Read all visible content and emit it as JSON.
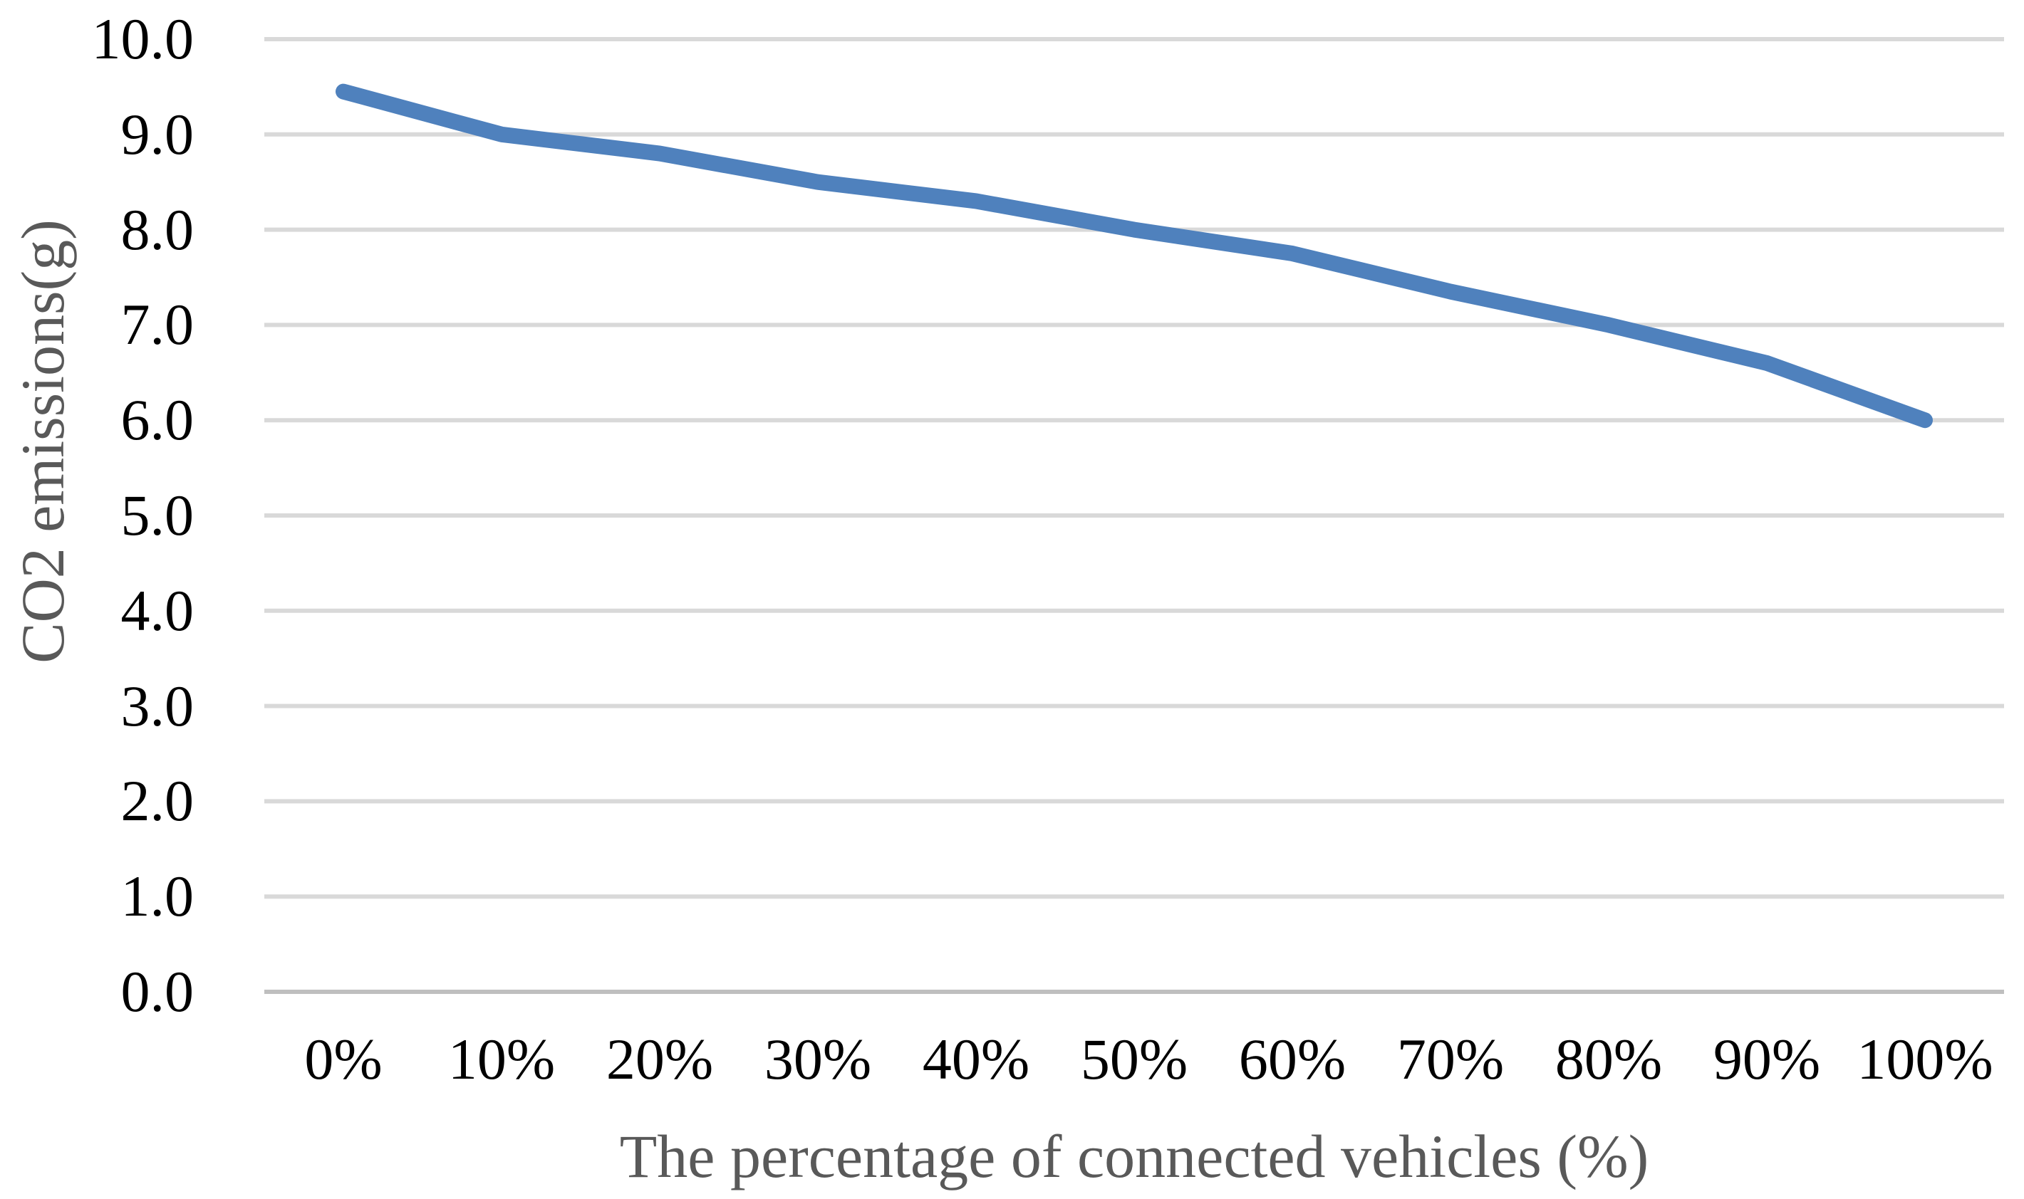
{
  "chart_data": {
    "type": "line",
    "title": "",
    "categories": [
      "0%",
      "10%",
      "20%",
      "30%",
      "40%",
      "50%",
      "60%",
      "70%",
      "80%",
      "90%",
      "100%"
    ],
    "series": [
      {
        "name": "CO2 emissions",
        "values": [
          9.45,
          9.0,
          8.8,
          8.5,
          8.3,
          8.0,
          7.75,
          7.35,
          7.0,
          6.6,
          6.0
        ]
      }
    ],
    "xlabel": "The percentage of connected vehicles (%)",
    "ylabel": "CO2 emissions(g)",
    "ylim": [
      0.0,
      10.0
    ],
    "ytick_step": 1.0,
    "ytick_labels": [
      "0.0",
      "1.0",
      "2.0",
      "3.0",
      "4.0",
      "5.0",
      "6.0",
      "7.0",
      "8.0",
      "9.0",
      "10.0"
    ],
    "grid": "horizontal-on",
    "legend_position": "none",
    "line_color": "#4F81BD",
    "gridline_color": "#D9D9D9",
    "axis_line_color": "#BFBFBF",
    "tick_label_color": "#000000",
    "axis_title_color": "#595959"
  }
}
